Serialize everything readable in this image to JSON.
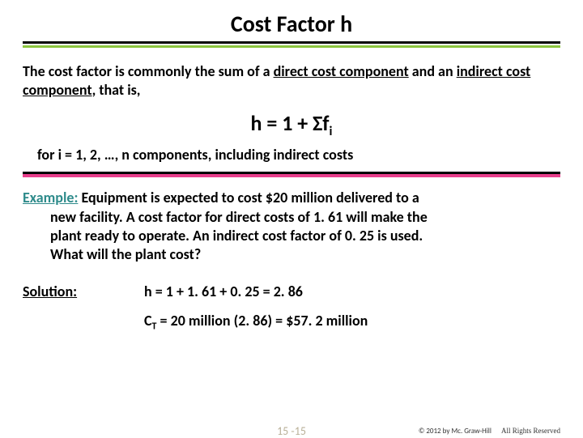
{
  "title": "Cost Factor h",
  "colors": {
    "title_underline_green": "#8cc63f",
    "divider_pink": "#e83e8c",
    "example_label": "#2e8b8b",
    "result_bold": "#000000",
    "pagenum": "#b9b098"
  },
  "intro": {
    "lead": "The cost factor is commonly the sum of a ",
    "direct": "direct cost component",
    "mid": " and an ",
    "indirect": "indirect cost component",
    "tail": ", that is,"
  },
  "formula": {
    "lhs": "h = 1 + Σf",
    "sub": "i"
  },
  "fori": "for i = 1, 2, …, n components, including indirect costs",
  "example": {
    "label": "Example:",
    "line1a": " Equipment is expected to cost $20 million delivered to a",
    "line2": "new facility.  A cost factor for direct costs of 1. 61 will make the",
    "line3": "plant ready to operate. An indirect cost factor of 0. 25 is used.",
    "line4": "What will the plant cost?"
  },
  "solution": {
    "label": "Solution:",
    "heq": "h = 1 + 1. 61 + 0. 25 = 2. 86",
    "ct_prefix": "C",
    "ct_sub": "T",
    "ct_mid": " = 20 million (2. 86) = ",
    "ct_result": "$57. 2 million"
  },
  "footer": {
    "pagenum": "15 -15",
    "copyright": "© 2012 by Mc. Graw-Hill",
    "rights": "All Rights Reserved"
  }
}
